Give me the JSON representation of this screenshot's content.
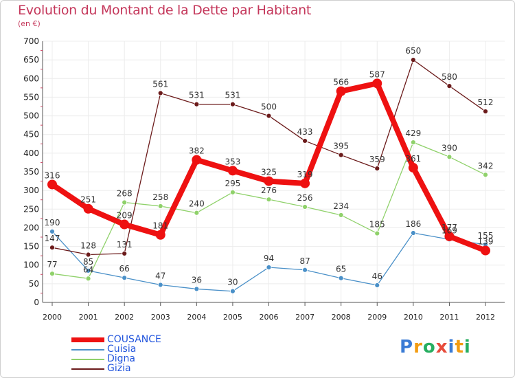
{
  "header": {
    "title": "Evolution du Montant de la Dette par Habitant",
    "subtitle": "(en €)"
  },
  "colors": {
    "title": "#c4365a",
    "legend_text": "#2255dd",
    "axis": "#222222"
  },
  "logo": {
    "text": "Proxiti",
    "letter_colors": [
      "#3a7bd5",
      "#f39c12",
      "#27ae60",
      "#e74c3c",
      "#3a7bd5",
      "#f39c12",
      "#27ae60"
    ]
  },
  "chart_data": {
    "type": "line",
    "title": "Evolution du Montant de la Dette par Habitant",
    "subtitle": "(en €)",
    "xlabel": "",
    "ylabel": "",
    "ylim": [
      0,
      700
    ],
    "yticks": [
      0,
      50,
      100,
      150,
      200,
      250,
      300,
      350,
      400,
      450,
      500,
      550,
      600,
      650,
      700
    ],
    "categories": [
      "2000",
      "2001",
      "2002",
      "2003",
      "2004",
      "2005",
      "2006",
      "2007",
      "2008",
      "2009",
      "2010",
      "2011",
      "2012"
    ],
    "grid": true,
    "legend_position": "bottom-left",
    "series": [
      {
        "name": "COUSANCE",
        "color": "#ee1111",
        "values": [
          316,
          251,
          209,
          181,
          382,
          353,
          325,
          319,
          566,
          587,
          361,
          177,
          139
        ]
      },
      {
        "name": "Cuisia",
        "color": "#4a90c8",
        "values": [
          190,
          85,
          66,
          47,
          36,
          30,
          94,
          87,
          65,
          46,
          186,
          169,
          155
        ]
      },
      {
        "name": "Digna",
        "color": "#8fd16a",
        "values": [
          77,
          64,
          268,
          258,
          240,
          295,
          276,
          256,
          234,
          185,
          429,
          390,
          342
        ]
      },
      {
        "name": "Gizia",
        "color": "#6b1a1a",
        "values": [
          147,
          128,
          131,
          561,
          531,
          531,
          500,
          433,
          395,
          359,
          650,
          580,
          512
        ]
      }
    ]
  }
}
